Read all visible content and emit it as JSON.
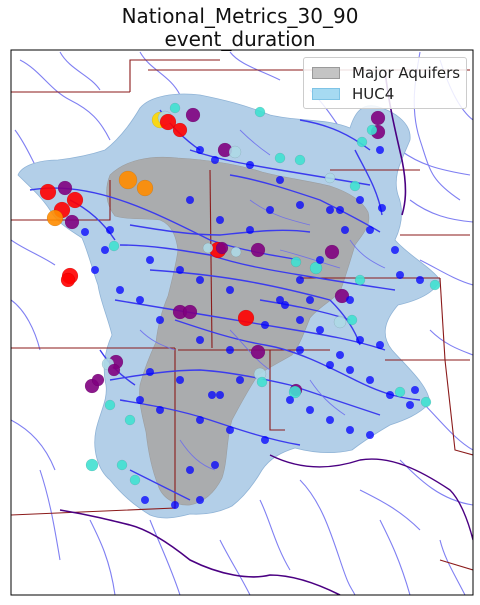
{
  "title": {
    "line1": "National_Metrics_30_90",
    "line2": "event_duration"
  },
  "legend": {
    "items": [
      {
        "label": "Major Aquifers",
        "color": "#b8b8b8"
      },
      {
        "label": "HUC4",
        "color": "#a6daf2"
      }
    ]
  },
  "colors": {
    "aquifer": "#b0b0b0",
    "huc4": "#b3cfe8",
    "rivers": "#4444ee",
    "state_borders": "#8b1a1a",
    "major_river": "#4b0082",
    "sites": [
      "#0000ff",
      "#40e0d0",
      "#ff0000",
      "#800080",
      "#ff8c00",
      "#ffd700",
      "#add8e6"
    ]
  }
}
